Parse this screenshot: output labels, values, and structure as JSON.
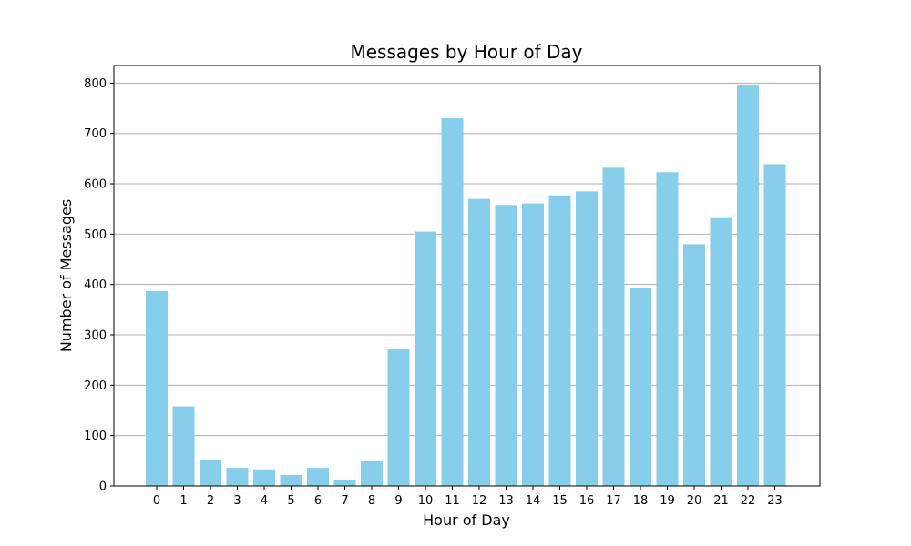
{
  "chart_data": {
    "type": "bar",
    "title": "Messages by Hour of Day",
    "xlabel": "Hour of Day",
    "ylabel": "Number of Messages",
    "categories": [
      "0",
      "1",
      "2",
      "3",
      "4",
      "5",
      "6",
      "7",
      "8",
      "9",
      "10",
      "11",
      "12",
      "13",
      "14",
      "15",
      "16",
      "17",
      "18",
      "19",
      "20",
      "21",
      "22",
      "23"
    ],
    "values": [
      387,
      158,
      52,
      36,
      33,
      22,
      36,
      11,
      49,
      271,
      505,
      730,
      570,
      558,
      561,
      577,
      585,
      632,
      393,
      623,
      480,
      532,
      797,
      639
    ],
    "ylim": [
      0,
      835
    ],
    "yticks": [
      0,
      100,
      200,
      300,
      400,
      500,
      600,
      700,
      800
    ],
    "grid": "y",
    "bar_color": "#87ceeb"
  }
}
